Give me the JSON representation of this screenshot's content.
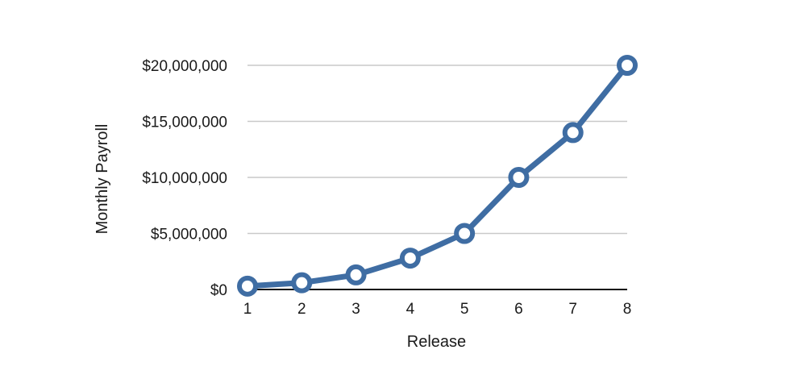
{
  "chart_data": {
    "type": "line",
    "title": "",
    "xlabel": "Release",
    "ylabel": "Monthly Payroll",
    "x": [
      1,
      2,
      3,
      4,
      5,
      6,
      7,
      8
    ],
    "x_tick_labels": [
      "1",
      "2",
      "3",
      "4",
      "5",
      "6",
      "7",
      "8"
    ],
    "series": [
      {
        "values": [
          300000,
          600000,
          1300000,
          2800000,
          5000000,
          10000000,
          14000000,
          20000000
        ],
        "color": "#3f6da3"
      }
    ],
    "ylim": [
      0,
      20000000
    ],
    "y_ticks": [
      0,
      5000000,
      10000000,
      15000000,
      20000000
    ],
    "y_tick_labels": [
      "$0",
      "$5,000,000",
      "$10,000,000",
      "$15,000,000",
      "$20,000,000"
    ],
    "grid": true,
    "legend": "none"
  }
}
